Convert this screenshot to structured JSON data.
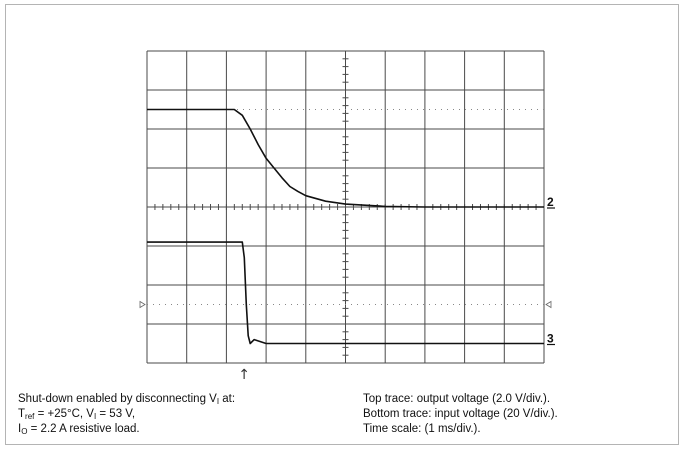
{
  "colors": {
    "frame": "#b4b4b4",
    "grid": "#4a4a4a",
    "trace": "#111111",
    "background": "#ffffff"
  },
  "chart_data": {
    "type": "line",
    "title": "",
    "xlabel": "",
    "ylabel": "",
    "x_unit": "ms",
    "xlim": [
      0,
      10
    ],
    "ylim_div": [
      -4,
      4
    ],
    "grid": true,
    "divisions": {
      "x": 10,
      "y": 8
    },
    "series": [
      {
        "key": "top",
        "marker_label": "2",
        "volts_per_div": 2.0,
        "x": [
          0,
          0.5,
          1.0,
          1.5,
          2.0,
          2.2,
          2.4,
          2.6,
          2.8,
          3.0,
          3.2,
          3.4,
          3.6,
          3.8,
          4.0,
          4.5,
          5.0,
          6.0,
          7.0,
          8.0,
          9.0,
          10.0
        ],
        "values": [
          5.0,
          5.0,
          5.0,
          5.0,
          5.0,
          5.0,
          4.7,
          4.0,
          3.2,
          2.5,
          2.0,
          1.5,
          1.05,
          0.8,
          0.58,
          0.3,
          0.15,
          0.03,
          0.0,
          0.0,
          0.0,
          0.0
        ]
      },
      {
        "key": "bottom",
        "marker_label": "3",
        "volts_per_div": 20,
        "x": [
          0,
          2.0,
          2.4,
          2.45,
          2.5,
          2.55,
          2.6,
          2.7,
          3.0,
          5.0,
          8.0,
          10.0
        ],
        "values": [
          52,
          52,
          52,
          44,
          20,
          4,
          0,
          2,
          0,
          0,
          0,
          0
        ]
      }
    ],
    "trigger_marker": {
      "x": 2.4,
      "glyph": "↑"
    }
  },
  "captions": {
    "left": {
      "line1_text": "Shut-down enabled by disconnecting V",
      "line1_sub": "I",
      "line1_tail": " at:",
      "line2_t": "T",
      "line2_t_sub": "ref",
      "line2_mid": " = +25°C, V",
      "line2_v_sub": "I",
      "line2_tail": " = 53 V,",
      "line3_i": "I",
      "line3_i_sub": "O",
      "line3_tail": " = 2.2 A resistive load."
    },
    "right": {
      "line1": "Top trace: output voltage (2.0 V/div.).",
      "line2": "Bottom trace: input voltage (20 V/div.).",
      "line3": "Time scale: (1 ms/div.)."
    }
  }
}
